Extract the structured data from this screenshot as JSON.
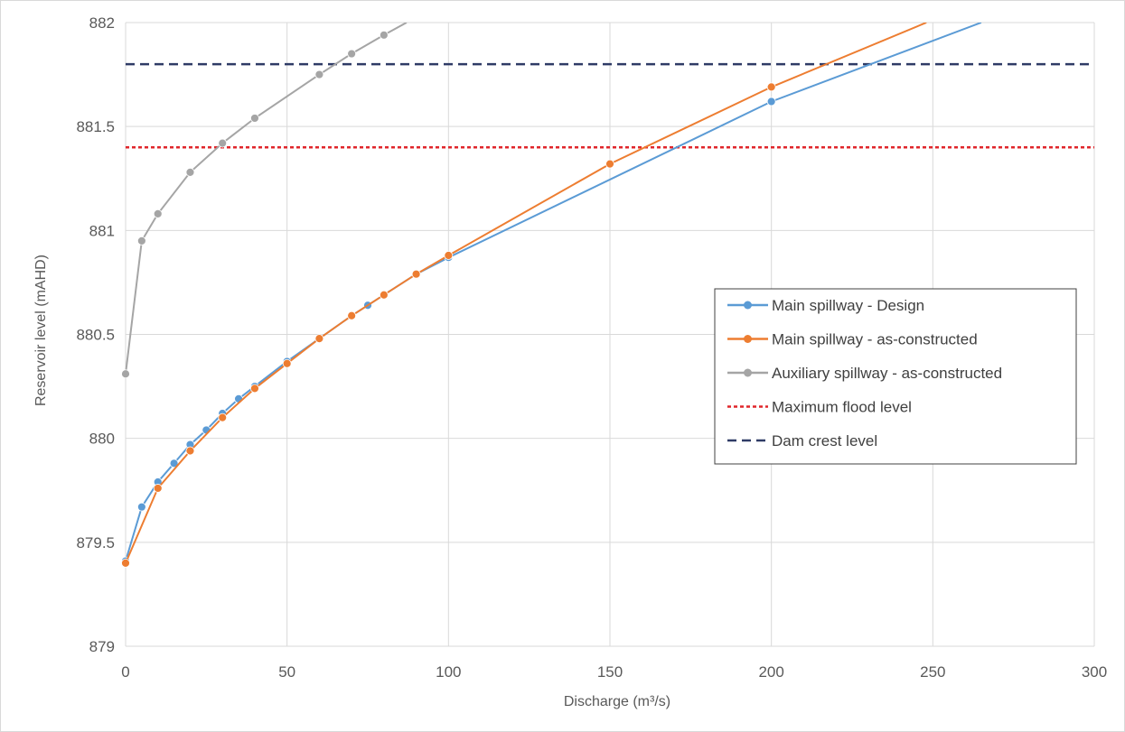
{
  "chart_data": {
    "type": "line",
    "xlabel": "Discharge (m³/s)",
    "ylabel": "Reservoir level (mAHD)",
    "xlim": [
      0,
      300
    ],
    "ylim": [
      879,
      882
    ],
    "xticks": [
      "0",
      "50",
      "100",
      "150",
      "200",
      "250",
      "300"
    ],
    "yticks": [
      "879",
      "879.5",
      "880",
      "880.5",
      "881",
      "881.5",
      "882"
    ],
    "grid": true,
    "legend_position": "right",
    "series": [
      {
        "name": "Main spillway - Design",
        "color": "#5b9bd5",
        "style": "solid-markers",
        "x": [
          0,
          5,
          10,
          15,
          20,
          25,
          30,
          35,
          40,
          50,
          60,
          70,
          75,
          80,
          90,
          100,
          200,
          265
        ],
        "y": [
          879.41,
          879.67,
          879.79,
          879.88,
          879.97,
          880.04,
          880.12,
          880.19,
          880.25,
          880.37,
          880.48,
          880.59,
          880.64,
          880.69,
          880.79,
          880.87,
          881.62,
          882.0
        ]
      },
      {
        "name": "Main spillway - as-constructed",
        "color": "#ed7d31",
        "style": "solid-markers",
        "x": [
          0,
          10,
          20,
          30,
          40,
          50,
          60,
          70,
          80,
          90,
          100,
          150,
          200,
          248
        ],
        "y": [
          879.4,
          879.76,
          879.94,
          880.1,
          880.24,
          880.36,
          880.48,
          880.59,
          880.69,
          880.79,
          880.88,
          881.32,
          881.69,
          882.0
        ]
      },
      {
        "name": "Auxiliary spillway - as-constructed",
        "color": "#a5a5a5",
        "style": "solid-markers",
        "x": [
          0,
          5,
          10,
          20,
          30,
          40,
          60,
          70,
          80,
          87
        ],
        "y": [
          880.31,
          880.95,
          881.08,
          881.28,
          881.42,
          881.54,
          881.75,
          881.85,
          881.94,
          882.0
        ]
      },
      {
        "name": "Maximum flood level",
        "color": "#e0262b",
        "style": "dotted",
        "x": [
          0,
          300
        ],
        "y": [
          881.4,
          881.4
        ]
      },
      {
        "name": "Dam crest level",
        "color": "#2f3b66",
        "style": "dashed",
        "x": [
          0,
          300
        ],
        "y": [
          881.8,
          881.8
        ]
      }
    ]
  }
}
